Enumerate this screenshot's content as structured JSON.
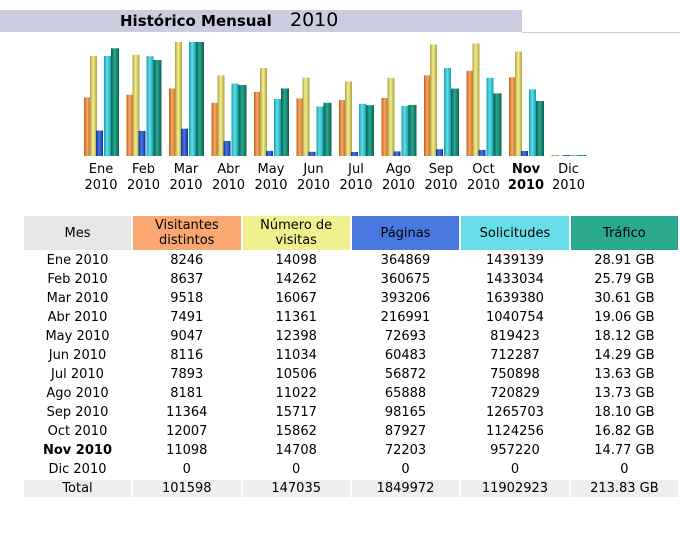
{
  "title": "Histórico Mensual",
  "year": "2010",
  "colors": {
    "visitantes": "#f8a870",
    "visitas": "#f0f090",
    "paginas": "#4878e0",
    "solicitudes": "#66dde8",
    "trafico": "#2aa890",
    "header_mes": "#e6e6e6"
  },
  "chart_data": {
    "type": "bar",
    "categories": [
      "Ene 2010",
      "Feb 2010",
      "Mar 2010",
      "Abr 2010",
      "May 2010",
      "Jun 2010",
      "Jul 2010",
      "Ago 2010",
      "Sep 2010",
      "Oct 2010",
      "Nov 2010",
      "Dic 2010"
    ],
    "series": [
      {
        "name": "Visitantes distintos",
        "values": [
          8246,
          8637,
          9518,
          7491,
          9047,
          8116,
          7893,
          8181,
          11364,
          12007,
          11098,
          0
        ]
      },
      {
        "name": "Número de visitas",
        "values": [
          14098,
          14262,
          16067,
          11361,
          12398,
          11034,
          10506,
          11022,
          15717,
          15862,
          14708,
          0
        ]
      },
      {
        "name": "Páginas",
        "values": [
          364869,
          360675,
          393206,
          216991,
          72693,
          60483,
          56872,
          65888,
          98165,
          87927,
          72203,
          0
        ]
      },
      {
        "name": "Solicitudes",
        "values": [
          1439139,
          1433034,
          1639380,
          1040754,
          819423,
          712287,
          750898,
          720829,
          1265703,
          1124256,
          957220,
          0
        ]
      },
      {
        "name": "Tráfico",
        "values": [
          28.91,
          25.79,
          30.61,
          19.06,
          18.12,
          14.29,
          13.63,
          13.73,
          18.1,
          16.82,
          14.77,
          0
        ]
      }
    ],
    "current_month_index": 10
  },
  "months": [
    {
      "m": "Ene",
      "y": "2010"
    },
    {
      "m": "Feb",
      "y": "2010"
    },
    {
      "m": "Mar",
      "y": "2010"
    },
    {
      "m": "Abr",
      "y": "2010"
    },
    {
      "m": "May",
      "y": "2010"
    },
    {
      "m": "Jun",
      "y": "2010"
    },
    {
      "m": "Jul",
      "y": "2010"
    },
    {
      "m": "Ago",
      "y": "2010"
    },
    {
      "m": "Sep",
      "y": "2010"
    },
    {
      "m": "Oct",
      "y": "2010"
    },
    {
      "m": "Nov",
      "y": "2010"
    },
    {
      "m": "Dic",
      "y": "2010"
    }
  ],
  "table": {
    "headers": [
      "Mes",
      "Visitantes distintos",
      "Número de visitas",
      "Páginas",
      "Solicitudes",
      "Tráfico"
    ],
    "rows": [
      [
        "Ene 2010",
        "8246",
        "14098",
        "364869",
        "1439139",
        "28.91 GB"
      ],
      [
        "Feb 2010",
        "8637",
        "14262",
        "360675",
        "1433034",
        "25.79 GB"
      ],
      [
        "Mar 2010",
        "9518",
        "16067",
        "393206",
        "1639380",
        "30.61 GB"
      ],
      [
        "Abr 2010",
        "7491",
        "11361",
        "216991",
        "1040754",
        "19.06 GB"
      ],
      [
        "May 2010",
        "9047",
        "12398",
        "72693",
        "819423",
        "18.12 GB"
      ],
      [
        "Jun 2010",
        "8116",
        "11034",
        "60483",
        "712287",
        "14.29 GB"
      ],
      [
        "Jul 2010",
        "7893",
        "10506",
        "56872",
        "750898",
        "13.63 GB"
      ],
      [
        "Ago 2010",
        "8181",
        "11022",
        "65888",
        "720829",
        "13.73 GB"
      ],
      [
        "Sep 2010",
        "11364",
        "15717",
        "98165",
        "1265703",
        "18.10 GB"
      ],
      [
        "Oct 2010",
        "12007",
        "15862",
        "87927",
        "1124256",
        "16.82 GB"
      ],
      [
        "Nov 2010",
        "11098",
        "14708",
        "72203",
        "957220",
        "14.77 GB"
      ],
      [
        "Dic 2010",
        "0",
        "0",
        "0",
        "0",
        "0"
      ]
    ],
    "total": [
      "Total",
      "101598",
      "147035",
      "1849972",
      "11902923",
      "213.83 GB"
    ]
  }
}
